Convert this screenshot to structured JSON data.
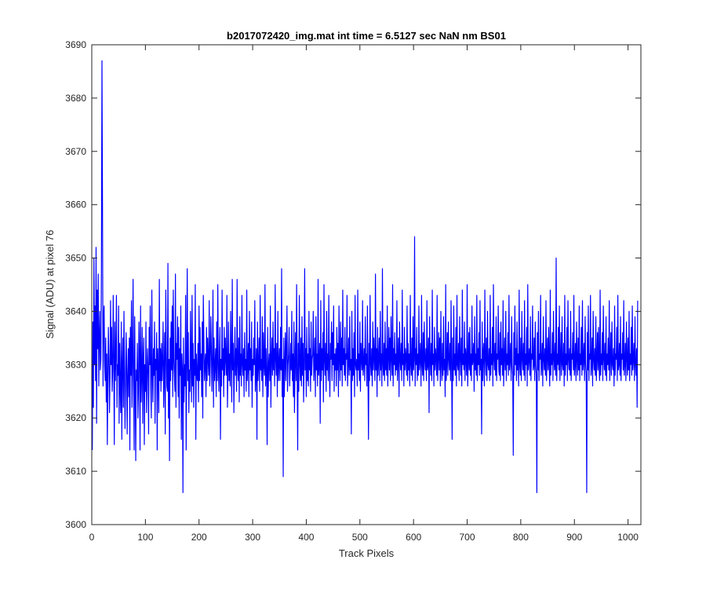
{
  "chart_data": {
    "type": "line",
    "title": "b2017072420_img.mat int time = 6.5127 sec  NaN nm BS01",
    "xlabel": "Track Pixels",
    "ylabel": "Signal (ADU) at pixel 76",
    "xlim": [
      0,
      1024
    ],
    "ylim": [
      3600,
      3690
    ],
    "xticks": [
      0,
      100,
      200,
      300,
      400,
      500,
      600,
      700,
      800,
      900,
      1000
    ],
    "yticks": [
      3600,
      3610,
      3620,
      3630,
      3640,
      3650,
      3660,
      3670,
      3680,
      3690
    ],
    "grid": false,
    "legend": "none",
    "series": [
      {
        "color": "#0000ff",
        "x_start": 1,
        "x_step": 1,
        "values": [
          3614,
          3638,
          3622,
          3650,
          3630,
          3641,
          3627,
          3652,
          3619,
          3644,
          3633,
          3647,
          3626,
          3635,
          3640,
          3629,
          3631,
          3648,
          3687,
          3660,
          3626,
          3639,
          3641,
          3630,
          3627,
          3635,
          3623,
          3632,
          3615,
          3628,
          3637,
          3631,
          3621,
          3628,
          3642,
          3630,
          3637,
          3625,
          3629,
          3643,
          3631,
          3615,
          3638,
          3627,
          3632,
          3643,
          3622,
          3630,
          3628,
          3641,
          3619,
          3634,
          3626,
          3621,
          3638,
          3616,
          3630,
          3635,
          3622,
          3640,
          3629,
          3618,
          3626,
          3636,
          3630,
          3617,
          3628,
          3633,
          3624,
          3635,
          3614,
          3637,
          3628,
          3642,
          3622,
          3630,
          3646,
          3627,
          3614,
          3639,
          3626,
          3612,
          3629,
          3627,
          3634,
          3620,
          3625,
          3638,
          3632,
          3614,
          3641,
          3623,
          3628,
          3637,
          3619,
          3631,
          3635,
          3615,
          3630,
          3625,
          3638,
          3621,
          3627,
          3633,
          3629,
          3617,
          3637,
          3630,
          3641,
          3626,
          3620,
          3644,
          3629,
          3623,
          3633,
          3628,
          3638,
          3619,
          3631,
          3629,
          3636,
          3614,
          3633,
          3629,
          3621,
          3646,
          3627,
          3633,
          3625,
          3634,
          3627,
          3631,
          3638,
          3622,
          3629,
          3636,
          3617,
          3644,
          3633,
          3626,
          3625,
          3649,
          3620,
          3631,
          3612,
          3635,
          3627,
          3638,
          3629,
          3641,
          3624,
          3644,
          3631,
          3628,
          3625,
          3647,
          3622,
          3634,
          3631,
          3639,
          3624,
          3637,
          3620,
          3633,
          3628,
          3641,
          3616,
          3632,
          3629,
          3606,
          3635,
          3623,
          3630,
          3626,
          3643,
          3614,
          3630,
          3648,
          3627,
          3636,
          3621,
          3629,
          3625,
          3640,
          3631,
          3623,
          3643,
          3626,
          3634,
          3622,
          3631,
          3628,
          3645,
          3616,
          3632,
          3628,
          3627,
          3634,
          3623,
          3641,
          3627,
          3637,
          3629,
          3632,
          3624,
          3638,
          3620,
          3643,
          3635,
          3627,
          3630,
          3632,
          3624,
          3637,
          3627,
          3635,
          3631,
          3628,
          3642,
          3626,
          3630,
          3639,
          3633,
          3625,
          3631,
          3644,
          3622,
          3635,
          3627,
          3630,
          3633,
          3624,
          3638,
          3627,
          3645,
          3630,
          3625,
          3632,
          3637,
          3616,
          3631,
          3626,
          3644,
          3629,
          3633,
          3624,
          3637,
          3628,
          3635,
          3631,
          3628,
          3643,
          3622,
          3629,
          3638,
          3627,
          3632,
          3626,
          3640,
          3631,
          3623,
          3646,
          3629,
          3634,
          3621,
          3630,
          3637,
          3628,
          3633,
          3625,
          3646,
          3630,
          3627,
          3635,
          3623,
          3639,
          3628,
          3632,
          3626,
          3643,
          3630,
          3628,
          3633,
          3624,
          3636,
          3629,
          3631,
          3625,
          3644,
          3627,
          3630,
          3634,
          3624,
          3640,
          3629,
          3633,
          3627,
          3638,
          3622,
          3631,
          3628,
          3635,
          3630,
          3642,
          3625,
          3629,
          3633,
          3616,
          3638,
          3627,
          3630,
          3635,
          3625,
          3643,
          3629,
          3631,
          3627,
          3639,
          3624,
          3636,
          3630,
          3628,
          3645,
          3626,
          3633,
          3629,
          3615,
          3637,
          3624,
          3630,
          3632,
          3627,
          3641,
          3622,
          3631,
          3635,
          3628,
          3638,
          3629,
          3633,
          3626,
          3645,
          3631,
          3628,
          3634,
          3624,
          3640,
          3627,
          3630,
          3633,
          3627,
          3637,
          3629,
          3648,
          3624,
          3631,
          3609,
          3635,
          3624,
          3630,
          3636,
          3627,
          3633,
          3641,
          3625,
          3630,
          3632,
          3637,
          3626,
          3629,
          3634,
          3629,
          3640,
          3627,
          3632,
          3624,
          3638,
          3621,
          3630,
          3636,
          3627,
          3645,
          3629,
          3614,
          3634,
          3625,
          3643,
          3630,
          3627,
          3635,
          3626,
          3639,
          3628,
          3634,
          3623,
          3630,
          3648,
          3629,
          3633,
          3624,
          3637,
          3627,
          3632,
          3626,
          3640,
          3629,
          3633,
          3625,
          3638,
          3628,
          3631,
          3632,
          3640,
          3627,
          3630,
          3635,
          3624,
          3639,
          3629,
          3632,
          3626,
          3646,
          3628,
          3630,
          3634,
          3619,
          3642,
          3627,
          3633,
          3629,
          3636,
          3623,
          3645,
          3631,
          3628,
          3634,
          3625,
          3640,
          3629,
          3632,
          3627,
          3643,
          3630,
          3624,
          3634,
          3631,
          3638,
          3627,
          3636,
          3630,
          3641,
          3625,
          3632,
          3629,
          3633,
          3626,
          3637,
          3629,
          3634,
          3624,
          3641,
          3631,
          3627,
          3638,
          3629,
          3635,
          3626,
          3644,
          3630,
          3633,
          3628,
          3637,
          3627,
          3632,
          3631,
          3643,
          3626,
          3630,
          3635,
          3628,
          3639,
          3629,
          3631,
          3617,
          3640,
          3627,
          3633,
          3628,
          3636,
          3624,
          3643,
          3630,
          3629,
          3631,
          3626,
          3644,
          3629,
          3632,
          3627,
          3638,
          3625,
          3634,
          3631,
          3629,
          3642,
          3628,
          3630,
          3633,
          3627,
          3639,
          3630,
          3632,
          3626,
          3641,
          3629,
          3616,
          3634,
          3627,
          3643,
          3630,
          3628,
          3633,
          3626,
          3638,
          3629,
          3635,
          3631,
          3627,
          3647,
          3629,
          3633,
          3624,
          3637,
          3628,
          3631,
          3635,
          3627,
          3640,
          3629,
          3632,
          3626,
          3648,
          3630,
          3628,
          3634,
          3627,
          3638,
          3629,
          3633,
          3628,
          3641,
          3626,
          3631,
          3637,
          3629,
          3635,
          3627,
          3639,
          3631,
          3628,
          3645,
          3626,
          3633,
          3630,
          3636,
          3628,
          3632,
          3629,
          3642,
          3627,
          3631,
          3635,
          3624,
          3638,
          3631,
          3629,
          3634,
          3627,
          3644,
          3630,
          3632,
          3626,
          3637,
          3629,
          3633,
          3631,
          3628,
          3641,
          3627,
          3634,
          3629,
          3632,
          3626,
          3643,
          3630,
          3628,
          3635,
          3627,
          3639,
          3629,
          3631,
          3654,
          3626,
          3633,
          3630,
          3637,
          3627,
          3632,
          3628,
          3641,
          3629,
          3631,
          3634,
          3626,
          3643,
          3630,
          3628,
          3636,
          3627,
          3638,
          3631,
          3629,
          3633,
          3627,
          3642,
          3629,
          3630,
          3635,
          3621,
          3639,
          3631,
          3628,
          3634,
          3627,
          3644,
          3630,
          3632,
          3626,
          3637,
          3629,
          3633,
          3631,
          3628,
          3643,
          3627,
          3631,
          3636,
          3629,
          3635,
          3626,
          3640,
          3630,
          3627,
          3634,
          3628,
          3639,
          3629,
          3631,
          3624,
          3645,
          3627,
          3630,
          3636,
          3628,
          3638,
          3631,
          3629,
          3634,
          3627,
          3642,
          3630,
          3616,
          3635,
          3627,
          3641,
          3629,
          3632,
          3628,
          3637,
          3626,
          3643,
          3630,
          3629,
          3634,
          3627,
          3639,
          3631,
          3628,
          3635,
          3626,
          3644,
          3630,
          3632,
          3629,
          3638,
          3627,
          3633,
          3631,
          3628,
          3645,
          3626,
          3630,
          3636,
          3629,
          3637,
          3628,
          3632,
          3627,
          3641,
          3630,
          3631,
          3634,
          3625,
          3639,
          3629,
          3632,
          3628,
          3643,
          3627,
          3633,
          3630,
          3636,
          3628,
          3642,
          3629,
          3631,
          3617,
          3638,
          3627,
          3632,
          3634,
          3626,
          3644,
          3631,
          3628,
          3635,
          3627,
          3640,
          3630,
          3629,
          3633,
          3627,
          3643,
          3628,
          3632,
          3630,
          3637,
          3626,
          3645,
          3631,
          3629,
          3634,
          3628,
          3639,
          3627,
          3632,
          3631,
          3641,
          3629,
          3628,
          3636,
          3627,
          3638,
          3630,
          3633,
          3628,
          3642,
          3626,
          3631,
          3635,
          3629,
          3640,
          3627,
          3632,
          3630,
          3636,
          3628,
          3643,
          3629,
          3631,
          3634,
          3627,
          3639,
          3630,
          3628,
          3613,
          3636,
          3628,
          3641,
          3630,
          3633,
          3627,
          3638,
          3629,
          3632,
          3626,
          3644,
          3630,
          3628,
          3635,
          3627,
          3640,
          3631,
          3629,
          3634,
          3628,
          3642,
          3627,
          3632,
          3630,
          3637,
          3626,
          3645,
          3629,
          3631,
          3633,
          3628,
          3639,
          3627,
          3632,
          3631,
          3641,
          3629,
          3630,
          3635,
          3627,
          3638,
          3630,
          3628,
          3606,
          3636,
          3629,
          3640,
          3627,
          3632,
          3631,
          3643,
          3628,
          3630,
          3634,
          3626,
          3639,
          3631,
          3629,
          3633,
          3628,
          3642,
          3627,
          3631,
          3635,
          3629,
          3637,
          3630,
          3626,
          3644,
          3628,
          3632,
          3630,
          3636,
          3627,
          3640,
          3631,
          3629,
          3634,
          3628,
          3650,
          3627,
          3632,
          3630,
          3637,
          3629,
          3641,
          3627,
          3631,
          3636,
          3628,
          3639,
          3630,
          3629,
          3634,
          3626,
          3643,
          3628,
          3632,
          3630,
          3637,
          3627,
          3642,
          3631,
          3629,
          3633,
          3628,
          3640,
          3627,
          3632,
          3631,
          3636,
          3629,
          3643,
          3628,
          3630,
          3634,
          3627,
          3638,
          3631,
          3628,
          3635,
          3629,
          3641,
          3627,
          3632,
          3630,
          3637,
          3628,
          3642,
          3629,
          3631,
          3634,
          3627,
          3639,
          3630,
          3628,
          3606,
          3636,
          3629,
          3641,
          3627,
          3632,
          3631,
          3643,
          3628,
          3630,
          3635,
          3626,
          3640,
          3631,
          3629,
          3633,
          3628,
          3639,
          3627,
          3631,
          3636,
          3629,
          3637,
          3630,
          3627,
          3644,
          3628,
          3632,
          3630,
          3636,
          3627,
          3641,
          3631,
          3629,
          3634,
          3628,
          3639,
          3627,
          3632,
          3630,
          3635,
          3629,
          3642,
          3627,
          3631,
          3636,
          3628,
          3638,
          3630,
          3629,
          3633,
          3626,
          3641,
          3628,
          3632,
          3631,
          3637,
          3627,
          3643,
          3629,
          3630,
          3634,
          3628,
          3639,
          3627,
          3632,
          3631,
          3636,
          3629,
          3642,
          3628,
          3630,
          3634,
          3627,
          3638,
          3631,
          3628,
          3635,
          3629,
          3640,
          3627,
          3632,
          3630,
          3637,
          3628,
          3641,
          3629,
          3631,
          3634,
          3627,
          3639,
          3630,
          3628,
          3633,
          3622,
          3642
        ]
      }
    ]
  }
}
